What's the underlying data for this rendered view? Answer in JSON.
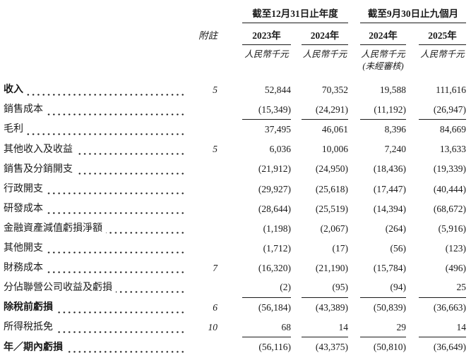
{
  "header": {
    "note_label": "附註",
    "groups": [
      {
        "title": "截至12月31日止年度",
        "years": [
          "2023年",
          "2024年"
        ]
      },
      {
        "title": "截至9月30日止九個月",
        "years": [
          "2024年",
          "2025年"
        ]
      }
    ],
    "unit": "人民幣千元",
    "unaudited": "(未經審核)",
    "unaudited_column_index": 2
  },
  "rows": [
    {
      "label": "收入",
      "note": "5",
      "bold": true,
      "underline": false,
      "double_rule": false,
      "values": [
        "52,844",
        "70,352",
        "19,588",
        "111,616"
      ]
    },
    {
      "label": "銷售成本",
      "note": "",
      "bold": false,
      "underline": true,
      "double_rule": false,
      "values": [
        "(15,349)",
        "(24,291)",
        "(11,192)",
        "(26,947)"
      ]
    },
    {
      "label": "毛利",
      "note": "",
      "bold": false,
      "underline": false,
      "double_rule": false,
      "values": [
        "37,495",
        "46,061",
        "8,396",
        "84,669"
      ]
    },
    {
      "label": "其他收入及收益",
      "note": "5",
      "bold": false,
      "underline": false,
      "double_rule": false,
      "values": [
        "6,036",
        "10,006",
        "7,240",
        "13,633"
      ]
    },
    {
      "label": "銷售及分銷開支",
      "note": "",
      "bold": false,
      "underline": false,
      "double_rule": false,
      "values": [
        "(21,912)",
        "(24,950)",
        "(18,436)",
        "(19,339)"
      ]
    },
    {
      "label": "行政開支",
      "note": "",
      "bold": false,
      "underline": false,
      "double_rule": false,
      "values": [
        "(29,927)",
        "(25,618)",
        "(17,447)",
        "(40,444)"
      ]
    },
    {
      "label": "研發成本",
      "note": "",
      "bold": false,
      "underline": false,
      "double_rule": false,
      "values": [
        "(28,644)",
        "(25,519)",
        "(14,394)",
        "(68,672)"
      ]
    },
    {
      "label": "金融資產減值虧損淨額",
      "note": "",
      "bold": false,
      "underline": false,
      "double_rule": false,
      "values": [
        "(1,198)",
        "(2,067)",
        "(264)",
        "(5,916)"
      ]
    },
    {
      "label": "其他開支",
      "note": "",
      "bold": false,
      "underline": false,
      "double_rule": false,
      "values": [
        "(1,712)",
        "(17)",
        "(56)",
        "(123)"
      ]
    },
    {
      "label": "財務成本",
      "note": "7",
      "bold": false,
      "underline": false,
      "double_rule": false,
      "values": [
        "(16,320)",
        "(21,190)",
        "(15,784)",
        "(496)"
      ]
    },
    {
      "label": "分佔聯營公司收益及虧損",
      "note": "",
      "bold": false,
      "underline": true,
      "double_rule": false,
      "values": [
        "(2)",
        "(95)",
        "(94)",
        "25"
      ]
    },
    {
      "label": "除稅前虧損",
      "note": "6",
      "bold": true,
      "underline": false,
      "double_rule": false,
      "values": [
        "(56,184)",
        "(43,389)",
        "(50,839)",
        "(36,663)"
      ]
    },
    {
      "label": "所得稅抵免",
      "note": "10",
      "bold": false,
      "underline": true,
      "double_rule": false,
      "values": [
        "68",
        "14",
        "29",
        "14"
      ]
    },
    {
      "label": "年／期內虧損",
      "note": "",
      "bold": true,
      "underline": false,
      "double_rule": true,
      "values": [
        "(56,116)",
        "(43,375)",
        "(50,810)",
        "(36,649)"
      ]
    }
  ]
}
